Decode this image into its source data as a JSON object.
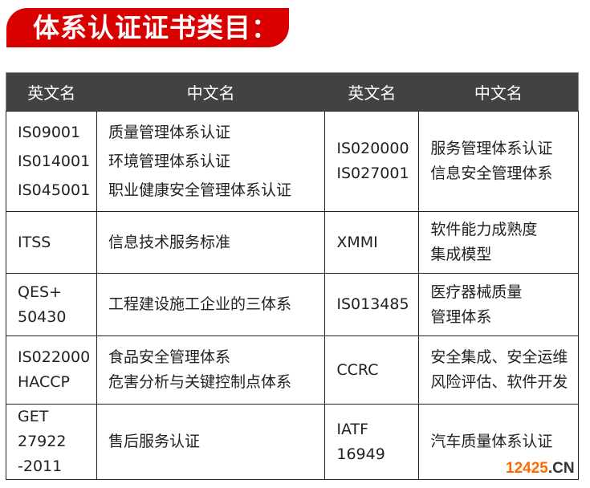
{
  "title": "体系认证证书类目：",
  "headers": [
    "英文名",
    "中文名",
    "英文名",
    "中文名"
  ],
  "rows": [
    {
      "en1": "IS09001\nIS014001\nIS045001",
      "cn1": "质量管理体系认证\n环境管理体系认证\n职业健康安全管理体系认证",
      "en2": "IS020000\nIS027001",
      "cn2": "服务管理体系认证\n信息安全管理体系"
    },
    {
      "en1": "ITSS",
      "cn1": "信息技术服务标准",
      "en2": "XMMI",
      "cn2": "软件能力成熟度\n集成模型"
    },
    {
      "en1": "QES+\n50430",
      "cn1": "工程建设施工企业的三体系",
      "en2": "IS013485",
      "cn2": "医疗器械质量\n管理体系"
    },
    {
      "en1": "IS022000\nHACCP",
      "cn1": "食品安全管理体系\n危害分析与关键控制点体系",
      "en2": "CCRC",
      "cn2": "安全集成、安全运维\n风险评估、软件开发"
    },
    {
      "en1": "GET 27922\n-2011",
      "cn1": "售后服务认证",
      "en2": "IATF\n16949",
      "cn2": "汽车质量体系认证"
    }
  ],
  "watermark": {
    "num": "12425",
    "suffix": ".CN"
  },
  "colors": {
    "banner": "#d90000",
    "header": "#424242",
    "watermark": "#ff6a00"
  }
}
